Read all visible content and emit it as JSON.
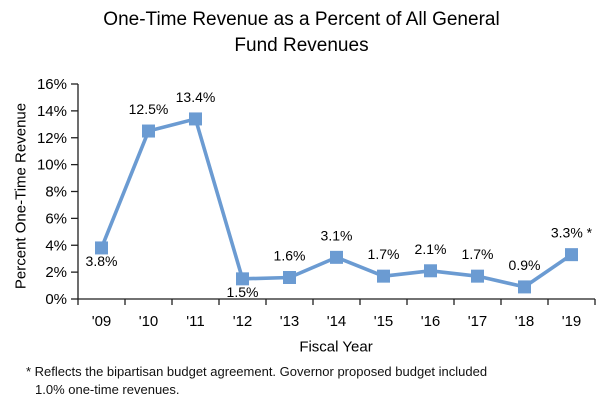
{
  "title": {
    "line1": "One-Time Revenue as a Percent of All General",
    "line2": "Fund Revenues"
  },
  "chart_data": {
    "type": "line",
    "title": "One-Time Revenue as a Percent of All General Fund Revenues",
    "xlabel": "Fiscal Year",
    "ylabel": "Percent One-Time Revenue",
    "categories": [
      "'09",
      "'10",
      "'11",
      "'12",
      "'13",
      "'14",
      "'15",
      "'16",
      "'17",
      "'18",
      "'19"
    ],
    "values": [
      3.8,
      12.5,
      13.4,
      1.5,
      1.6,
      3.1,
      1.7,
      2.1,
      1.7,
      0.9,
      3.3
    ],
    "data_labels": [
      "3.8%",
      "12.5%",
      "13.4%",
      "1.5%",
      "1.6%",
      "3.1%",
      "1.7%",
      "2.1%",
      "1.7%",
      "0.9%",
      "3.3% *"
    ],
    "label_positions": [
      "below",
      "above",
      "above",
      "below",
      "above",
      "above",
      "above",
      "above",
      "above",
      "above",
      "above"
    ],
    "ylim": [
      0,
      16
    ],
    "ytick_step": 2,
    "ytick_labels": [
      "0%",
      "2%",
      "4%",
      "6%",
      "8%",
      "10%",
      "12%",
      "14%",
      "16%"
    ],
    "grid": false,
    "legend": "none",
    "line_color": "#6B9BD2",
    "axis_color": "#1f1f1f",
    "marker": "square"
  },
  "footnote": {
    "line1": "* Reflects the bipartisan budget agreement. Governor proposed budget included",
    "line2": "1.0% one-time revenues."
  }
}
